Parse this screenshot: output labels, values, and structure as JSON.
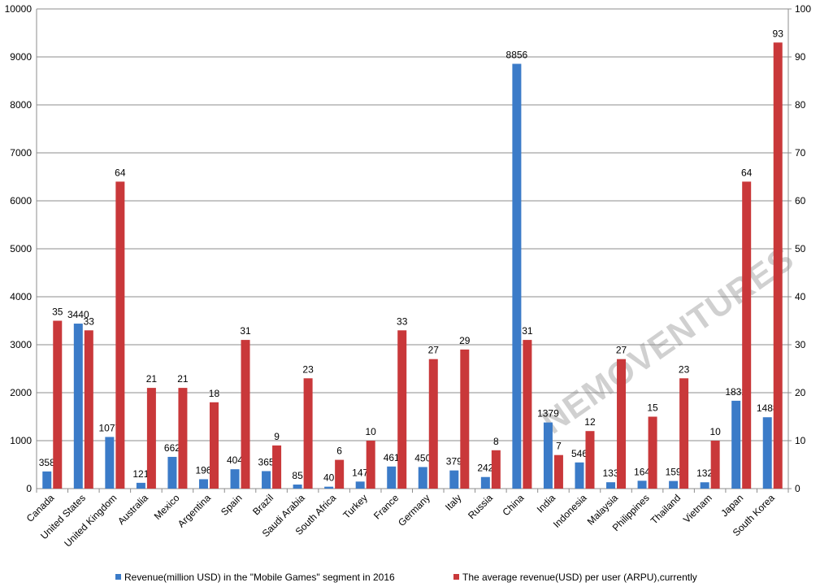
{
  "chart_data": {
    "type": "bar",
    "categories": [
      "Canada",
      "United States",
      "United Kingdom",
      "Australia",
      "Mexico",
      "Argentina",
      "Spain",
      "Brazil",
      "Saudi Arabia",
      "South Africa",
      "Turkey",
      "France",
      "Germany",
      "Italy",
      "Russia",
      "China",
      "India",
      "Indonesia",
      "Malaysia",
      "Philippines",
      "Thailand",
      "Vietnam",
      "Japan",
      "South Korea"
    ],
    "series": [
      {
        "name": "Revenue(million USD) in the \"Mobile Games\" segment in 2016",
        "color": "#3b7bc8",
        "values": [
          358,
          3440,
          1077,
          121,
          662,
          196,
          404,
          365,
          85,
          40,
          147,
          461,
          450,
          379,
          242,
          8856,
          1379,
          546,
          133,
          164,
          159,
          132,
          1832,
          1488
        ]
      },
      {
        "name": "The average revenue(USD) per user (ARPU),currently",
        "color": "#c9383a",
        "axis": "y2",
        "values": [
          35,
          33,
          64,
          21,
          21,
          18,
          31,
          9,
          23,
          6,
          10,
          33,
          27,
          29,
          8,
          31,
          7,
          12,
          27,
          15,
          23,
          10,
          64,
          93
        ]
      }
    ],
    "ylim": [
      0,
      10000
    ],
    "yticks": [
      0,
      1000,
      2000,
      3000,
      4000,
      5000,
      6000,
      7000,
      8000,
      9000,
      10000
    ],
    "y2lim": [
      0,
      100
    ],
    "y2ticks": [
      0,
      10,
      20,
      30,
      40,
      50,
      60,
      70,
      80,
      90,
      100
    ],
    "grid": true,
    "legend": "bottom",
    "watermark": "NEMOVENTURES"
  }
}
